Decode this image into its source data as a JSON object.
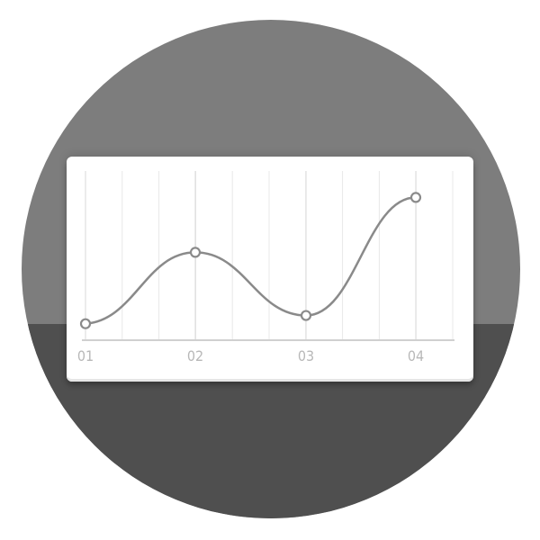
{
  "chart_data": {
    "type": "line",
    "categories": [
      "01",
      "02",
      "03",
      "04"
    ],
    "values": [
      0.3,
      1.6,
      0.45,
      2.6
    ],
    "ylim": [
      0,
      3
    ],
    "grid": true,
    "smooth": true,
    "markers": "open-circle",
    "title": "",
    "xlabel": "",
    "ylabel": ""
  },
  "colors": {
    "background_circle_top": "#7d7d7d",
    "background_circle_bottom": "#4f4f4f",
    "card": "#ffffff",
    "line": "#8a8a8a",
    "grid": "#e8e8e8",
    "axis": "#d0d0d0",
    "tick_label": "#b8b8b8"
  }
}
